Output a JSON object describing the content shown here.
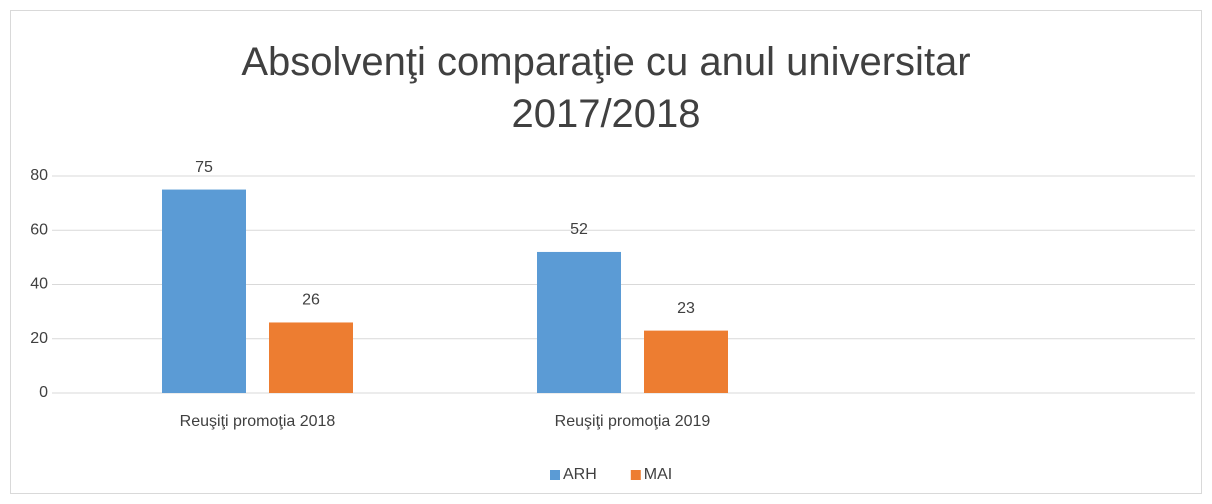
{
  "chart_data": {
    "type": "bar",
    "title": "Absolvenţi comparaţie cu anul universitar 2017/2018",
    "categories": [
      "Reuşiţi promoţia 2018",
      "Reuşiţi promoţia 2019",
      null
    ],
    "series": [
      {
        "name": "ARH",
        "color": "#5b9bd5",
        "values": [
          75,
          52,
          null
        ]
      },
      {
        "name": "MAI",
        "color": "#ed7d31",
        "values": [
          26,
          23,
          null
        ]
      }
    ],
    "ylim": [
      0,
      80
    ],
    "yticks": [
      0,
      20,
      40,
      60,
      80
    ],
    "grid": true,
    "legend": "bottom"
  }
}
